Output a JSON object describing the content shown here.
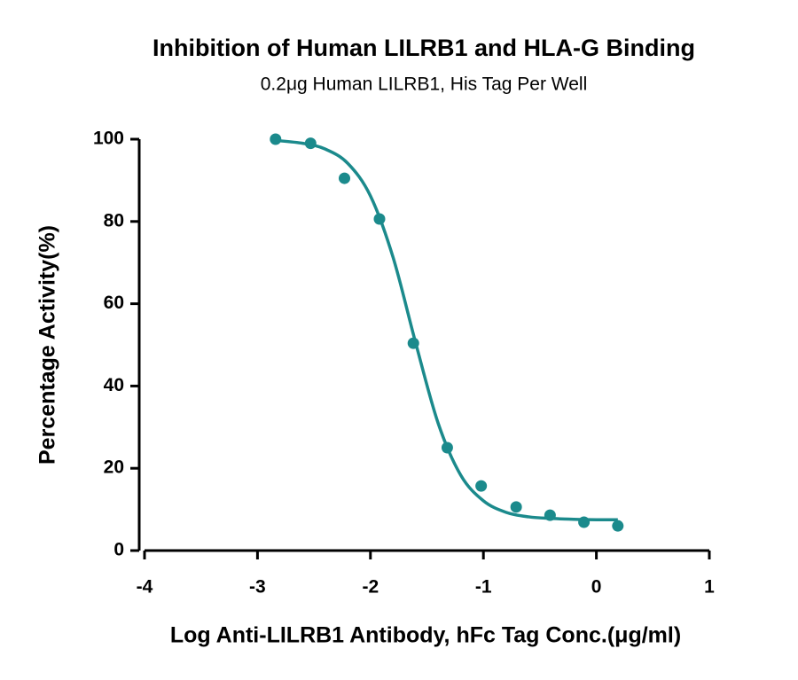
{
  "chart_data": {
    "type": "scatter",
    "title": "Inhibition of Human LILRB1 and HLA-G Binding",
    "subtitle": "0.2μg Human LILRB1, His Tag Per Well",
    "x_label": "Log Anti-LILRB1 Antibody, hFc Tag Conc.(μg/ml)",
    "y_label": "Percentage Activity(%)",
    "color": "#1b8a8c",
    "x": [
      -2.84,
      -2.53,
      -2.23,
      -1.92,
      -1.62,
      -1.32,
      -1.02,
      -0.71,
      -0.41,
      -0.11,
      0.19
    ],
    "values": [
      100,
      99,
      90.5,
      80.6,
      50.4,
      25,
      15.7,
      10.6,
      8.6,
      6.9,
      6
    ],
    "curve": {
      "x": [
        -2.84,
        -2.6,
        -2.4,
        -2.2,
        -2.0,
        -1.8,
        -1.6,
        -1.4,
        -1.2,
        -1.0,
        -0.8,
        -0.6,
        -0.4,
        -0.2,
        0.0,
        0.19
      ],
      "values": [
        99.7,
        99.0,
        97.6,
        94.1,
        86.2,
        71.3,
        50.5,
        30.9,
        18.3,
        12.1,
        9.3,
        8.2,
        7.8,
        7.6,
        7.5,
        7.5
      ]
    },
    "xlim": [
      -4,
      1
    ],
    "xticks": [
      -4,
      -3,
      -2,
      -1,
      0,
      1
    ],
    "ylim": [
      0,
      100
    ],
    "yticks": [
      0,
      20,
      40,
      60,
      80,
      100
    ],
    "grid": false
  }
}
